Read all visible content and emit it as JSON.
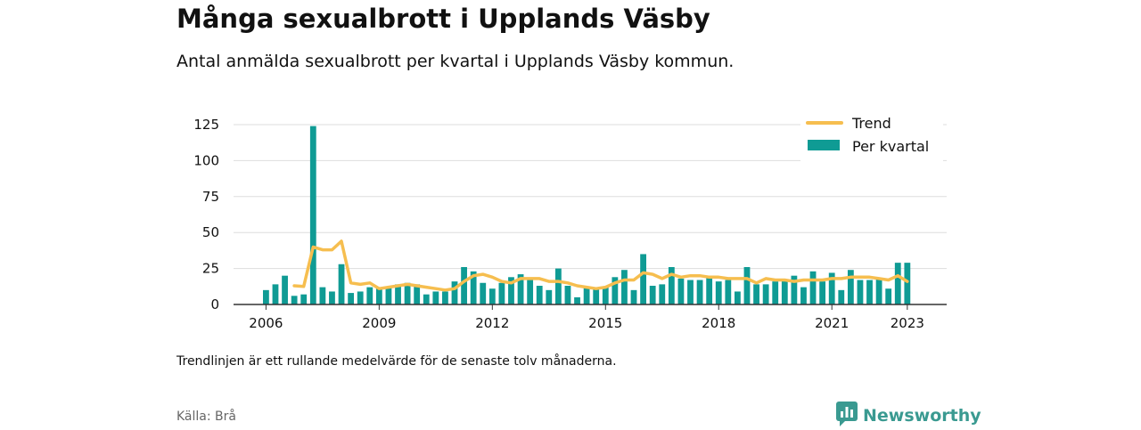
{
  "header": {
    "title": "Många sexualbrott i Upplands Väsby",
    "subtitle": "Antal anmälda sexualbrott per kvartal i Upplands Väsby kommun."
  },
  "footer": {
    "note": "Trendlinjen är ett rullande medelvärde för de senaste tolv månaderna.",
    "source": "Källa: Brå",
    "brand": "Newsworthy"
  },
  "colors": {
    "bar": "#0f9b94",
    "trend": "#f6be4f",
    "grid": "#dddddd",
    "axis": "#333333",
    "brand": "#3a9a91"
  },
  "chart_data": {
    "type": "bar",
    "title": "Många sexualbrott i Upplands Väsby",
    "xlabel": "",
    "ylabel": "",
    "ylim": [
      0,
      130
    ],
    "yticks": [
      0,
      25,
      50,
      75,
      100,
      125
    ],
    "xticks": [
      "2006",
      "2009",
      "2012",
      "2015",
      "2018",
      "2021",
      "2023"
    ],
    "grid": true,
    "legend_position": "top-right",
    "categories": [
      "2006 Q1",
      "2006 Q2",
      "2006 Q3",
      "2006 Q4",
      "2007 Q1",
      "2007 Q2",
      "2007 Q3",
      "2007 Q4",
      "2008 Q1",
      "2008 Q2",
      "2008 Q3",
      "2008 Q4",
      "2009 Q1",
      "2009 Q2",
      "2009 Q3",
      "2009 Q4",
      "2010 Q1",
      "2010 Q2",
      "2010 Q3",
      "2010 Q4",
      "2011 Q1",
      "2011 Q2",
      "2011 Q3",
      "2011 Q4",
      "2012 Q1",
      "2012 Q2",
      "2012 Q3",
      "2012 Q4",
      "2013 Q1",
      "2013 Q2",
      "2013 Q3",
      "2013 Q4",
      "2014 Q1",
      "2014 Q2",
      "2014 Q3",
      "2014 Q4",
      "2015 Q1",
      "2015 Q2",
      "2015 Q3",
      "2015 Q4",
      "2016 Q1",
      "2016 Q2",
      "2016 Q3",
      "2016 Q4",
      "2017 Q1",
      "2017 Q2",
      "2017 Q3",
      "2017 Q4",
      "2018 Q1",
      "2018 Q2",
      "2018 Q3",
      "2018 Q4",
      "2019 Q1",
      "2019 Q2",
      "2019 Q3",
      "2019 Q4",
      "2020 Q1",
      "2020 Q2",
      "2020 Q3",
      "2020 Q4",
      "2021 Q1",
      "2021 Q2",
      "2021 Q3",
      "2021 Q4",
      "2022 Q1",
      "2022 Q2",
      "2022 Q3",
      "2022 Q4",
      "2023 Q1"
    ],
    "series": [
      {
        "name": "Per kvartal",
        "type": "bar",
        "values": [
          10,
          14,
          20,
          6,
          7,
          124,
          12,
          9,
          28,
          8,
          9,
          12,
          11,
          12,
          14,
          15,
          14,
          7,
          9,
          9,
          16,
          26,
          23,
          15,
          11,
          15,
          19,
          21,
          17,
          13,
          10,
          25,
          13,
          5,
          12,
          11,
          12,
          19,
          24,
          10,
          35,
          13,
          14,
          26,
          18,
          17,
          17,
          20,
          16,
          17,
          9,
          26,
          14,
          14,
          16,
          17,
          20,
          12,
          23,
          16,
          22,
          10,
          24,
          17,
          17,
          18,
          11,
          29,
          29
        ]
      },
      {
        "name": "Trend",
        "type": "line",
        "values": [
          null,
          null,
          null,
          13,
          12.5,
          40,
          38,
          38,
          44,
          15,
          14,
          15,
          11,
          12,
          13,
          14,
          13,
          12,
          11,
          10,
          11,
          16,
          20,
          21,
          19,
          16,
          15,
          18,
          18,
          18,
          16,
          16,
          15,
          13,
          12,
          11,
          12,
          15,
          17,
          17,
          22,
          21,
          18,
          21,
          19,
          20,
          20,
          19,
          19,
          18,
          18,
          18,
          15,
          18,
          17,
          17,
          16,
          17,
          17,
          17,
          18,
          18,
          19,
          19,
          19,
          18,
          17,
          20,
          16
        ]
      }
    ]
  }
}
